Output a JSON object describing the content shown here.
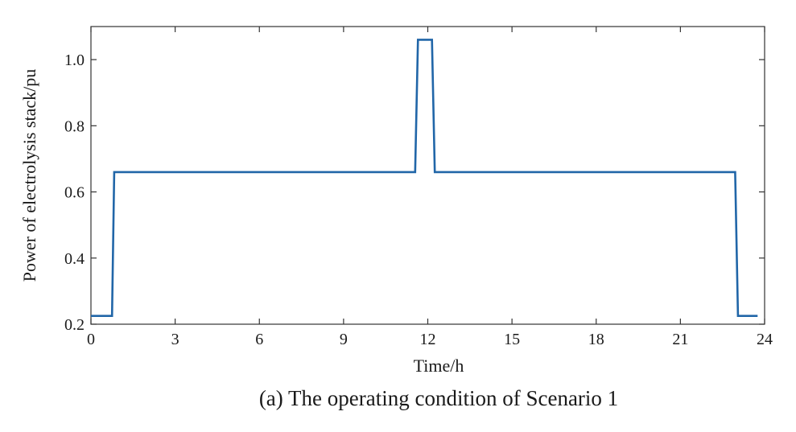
{
  "chart_data": {
    "type": "line",
    "caption": "(a) The operating condition of Scenario 1",
    "xlabel": "Time/h",
    "ylabel": "Power of electrolysis stack/pu",
    "xlim": [
      0,
      24
    ],
    "ylim": [
      0.2,
      1.1
    ],
    "xticks": [
      0,
      3,
      6,
      9,
      12,
      15,
      18,
      21,
      24
    ],
    "yticks": [
      0.2,
      0.4,
      0.6,
      0.8,
      1.0
    ],
    "ytick_labels": [
      "0.2",
      "0.4",
      "0.6",
      "0.8",
      "1.0"
    ],
    "grid": false,
    "series": [
      {
        "color": "#2166a8",
        "x": [
          0,
          0.75,
          0.83,
          11.55,
          11.65,
          12.15,
          12.25,
          22.95,
          23.05,
          23.75
        ],
        "y": [
          0.225,
          0.225,
          0.66,
          0.66,
          1.06,
          1.06,
          0.66,
          0.66,
          0.225,
          0.225
        ]
      }
    ]
  }
}
